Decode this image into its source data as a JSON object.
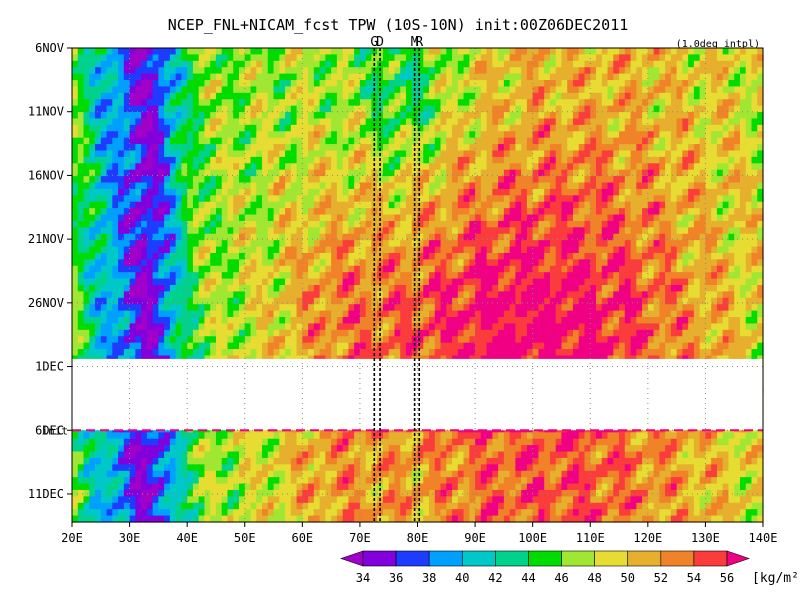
{
  "chart_data": {
    "type": "heatmap",
    "title": "NCEP_FNL+NICAM_fcst TPW (10S-10N) init:00Z06DEC2011",
    "note": "(1.0deg intpl)",
    "x_ticks": [
      "20E",
      "30E",
      "40E",
      "50E",
      "60E",
      "70E",
      "80E",
      "90E",
      "100E",
      "110E",
      "120E",
      "130E",
      "140E"
    ],
    "x_values": [
      20,
      30,
      40,
      50,
      60,
      70,
      80,
      90,
      100,
      110,
      120,
      130,
      140
    ],
    "xlim": [
      20,
      140
    ],
    "y_ticks": [
      "6NOV",
      "11NOV",
      "16NOV",
      "21NOV",
      "26NOV",
      "1DEC",
      "6DEC",
      "11DEC"
    ],
    "y_days": [
      0,
      5,
      10,
      15,
      20,
      25,
      30,
      35
    ],
    "ylim_days": [
      0,
      37.2
    ],
    "missing_days": [
      24.4,
      30.0
    ],
    "init_label": "init",
    "init_day": 30,
    "markers": [
      {
        "label": "G",
        "lon": 72.5
      },
      {
        "label": "D",
        "lon": 73.5
      },
      {
        "label": "M",
        "lon": 79.5
      },
      {
        "label": "R",
        "lon": 80.3
      }
    ],
    "colorbar": {
      "levels": [
        34,
        36,
        38,
        40,
        42,
        44,
        46,
        48,
        50,
        52,
        54,
        56
      ],
      "level_labels": [
        "34",
        "36",
        "38",
        "40",
        "42",
        "44",
        "46",
        "48",
        "50",
        "52",
        "54",
        "56"
      ],
      "colors": [
        "#a000c8",
        "#8200dc",
        "#1e3cff",
        "#00a0ff",
        "#00c8c8",
        "#00d28c",
        "#00dc00",
        "#a0e632",
        "#e6dc32",
        "#e6af2d",
        "#f08228",
        "#fa3c3c",
        "#f00082"
      ],
      "unit": "[kg/m²]"
    },
    "xlabel": "",
    "ylabel": ""
  }
}
